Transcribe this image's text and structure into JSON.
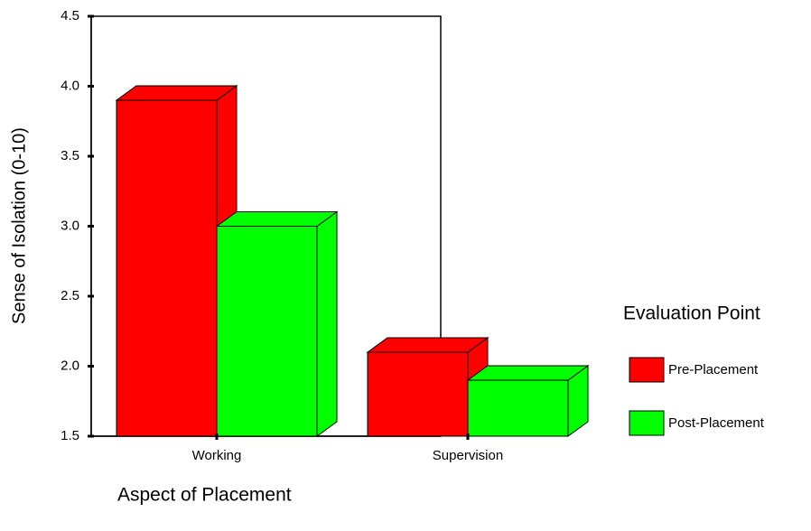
{
  "chart_data": {
    "type": "bar3d",
    "y_label": "Sense of Isolation (0-10)",
    "x_label": "Aspect of Placement",
    "legend_title": "Evaluation Point",
    "categories": [
      "Working",
      "Supervision"
    ],
    "series": [
      {
        "name": "Pre-Placement",
        "color": "#ff0000",
        "values": [
          3.9,
          2.1
        ]
      },
      {
        "name": "Post-Placement",
        "color": "#00ff00",
        "values": [
          3.0,
          1.9
        ]
      }
    ],
    "ylim": [
      1.5,
      4.5
    ],
    "yticks": [
      1.5,
      {
        "value": 2,
        "label": "2.0"
      },
      2.5,
      {
        "value": 3,
        "label": "3.0"
      },
      3.5,
      {
        "value": 4,
        "label": "4.0"
      },
      4.5
    ],
    "legend": "right"
  }
}
